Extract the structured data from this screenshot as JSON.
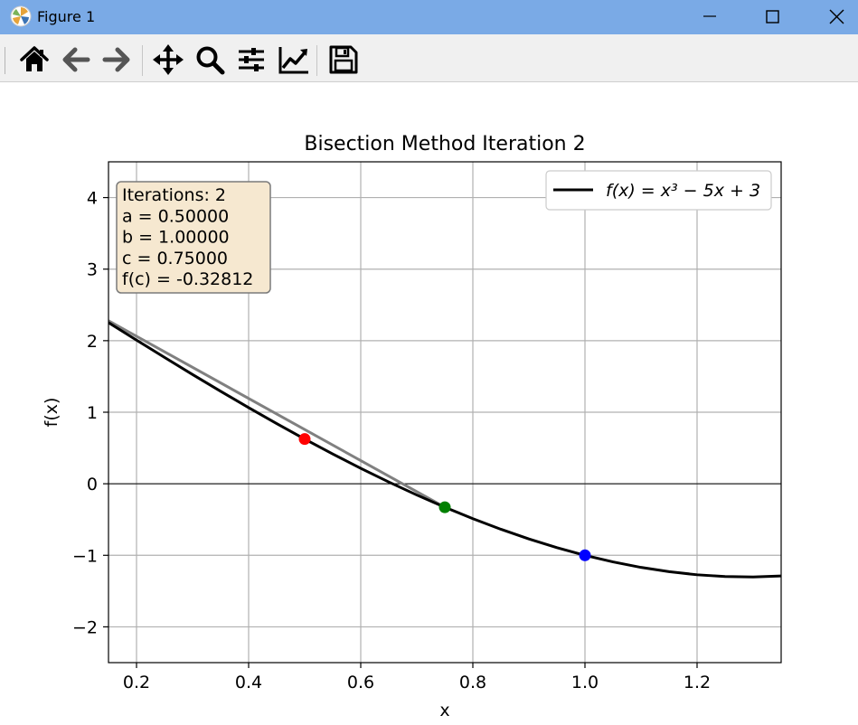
{
  "window": {
    "title": "Figure 1",
    "app_icon": "matplotlib-icon",
    "controls": [
      "minimize-icon",
      "maximize-icon",
      "close-icon"
    ]
  },
  "toolbar": {
    "tools": [
      "home-icon",
      "back-arrow-icon",
      "forward-arrow-icon",
      "pan-move-icon",
      "zoom-magnifier-icon",
      "configure-subplots-icon",
      "edit-axis-icon",
      "save-floppy-icon"
    ]
  },
  "chart_data": {
    "type": "line",
    "title": "Bisection Method Iteration 2",
    "xlabel": "x",
    "ylabel": "f(x)",
    "xlim": [
      0.15,
      1.35
    ],
    "ylim": [
      -2.5,
      4.5
    ],
    "xticks": [
      0.2,
      0.4,
      0.6,
      0.8,
      1.0,
      1.2
    ],
    "xtick_labels": [
      "0.2",
      "0.4",
      "0.6",
      "0.8",
      "1.0",
      "1.2"
    ],
    "yticks": [
      -2,
      -1,
      0,
      1,
      2,
      3,
      4
    ],
    "ytick_labels": [
      "−2",
      "−1",
      "0",
      "1",
      "2",
      "3",
      "4"
    ],
    "grid": true,
    "legend": {
      "placement": "top-right",
      "entries": [
        {
          "name": "f(x) = x³ − 5x + 3",
          "color": "#000000"
        }
      ]
    },
    "curve": {
      "x": [
        0.15,
        0.2,
        0.25,
        0.3,
        0.35,
        0.4,
        0.45,
        0.5,
        0.55,
        0.6,
        0.65,
        0.7,
        0.75,
        0.8,
        0.85,
        0.9,
        0.95,
        1.0,
        1.05,
        1.1,
        1.15,
        1.2,
        1.25,
        1.3,
        1.35
      ],
      "y": [
        2.253,
        2.008,
        1.766,
        1.527,
        1.293,
        1.064,
        0.841,
        0.625,
        0.416,
        0.216,
        0.025,
        -0.157,
        -0.328,
        -0.488,
        -0.636,
        -0.771,
        -0.893,
        -1.0,
        -1.092,
        -1.169,
        -1.229,
        -1.272,
        -1.297,
        -1.303,
        -1.289
      ],
      "color": "#000000"
    },
    "secant_line": {
      "x": [
        0.15,
        0.75
      ],
      "y": [
        2.279,
        -0.328
      ],
      "color": "#808080"
    },
    "zero_line": {
      "y": 0,
      "color": "#000000"
    },
    "points": [
      {
        "label": "a",
        "x": 0.5,
        "y": 0.625,
        "color": "#ff0000"
      },
      {
        "label": "c",
        "x": 0.75,
        "y": -0.328,
        "color": "#008000"
      },
      {
        "label": "b",
        "x": 1.0,
        "y": -1.0,
        "color": "#0000ff"
      }
    ],
    "annotation_box": {
      "lines": [
        "Iterations: 2",
        "a = 0.50000",
        "b = 1.00000",
        "c = 0.75000",
        "f(c) = -0.32812"
      ],
      "background": "#f6e8d0",
      "placement": "top-left"
    }
  }
}
